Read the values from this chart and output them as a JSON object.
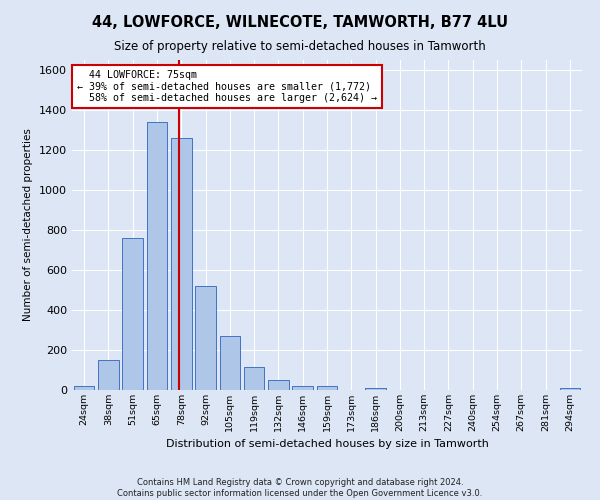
{
  "title_line1": "44, LOWFORCE, WILNECOTE, TAMWORTH, B77 4LU",
  "title_line2": "Size of property relative to semi-detached houses in Tamworth",
  "xlabel": "Distribution of semi-detached houses by size in Tamworth",
  "ylabel": "Number of semi-detached properties",
  "footnote": "Contains HM Land Registry data © Crown copyright and database right 2024.\nContains public sector information licensed under the Open Government Licence v3.0.",
  "bar_labels": [
    "24sqm",
    "38sqm",
    "51sqm",
    "65sqm",
    "78sqm",
    "92sqm",
    "105sqm",
    "119sqm",
    "132sqm",
    "146sqm",
    "159sqm",
    "173sqm",
    "186sqm",
    "200sqm",
    "213sqm",
    "227sqm",
    "240sqm",
    "254sqm",
    "267sqm",
    "281sqm",
    "294sqm"
  ],
  "bar_values": [
    20,
    150,
    760,
    1340,
    1260,
    520,
    270,
    115,
    50,
    20,
    20,
    0,
    10,
    0,
    0,
    0,
    0,
    0,
    0,
    0,
    10
  ],
  "bar_color": "#aec6e8",
  "bar_edge_color": "#4472c4",
  "property_sqm": 75,
  "property_label": "44 LOWFORCE: 75sqm",
  "pct_smaller": 39,
  "n_smaller": 1772,
  "pct_larger": 58,
  "n_larger": 2624,
  "vline_color": "#cc0000",
  "annotation_box_color": "#cc0000",
  "ylim": [
    0,
    1650
  ],
  "background_color": "#dce6f5",
  "grid_color": "#ffffff"
}
